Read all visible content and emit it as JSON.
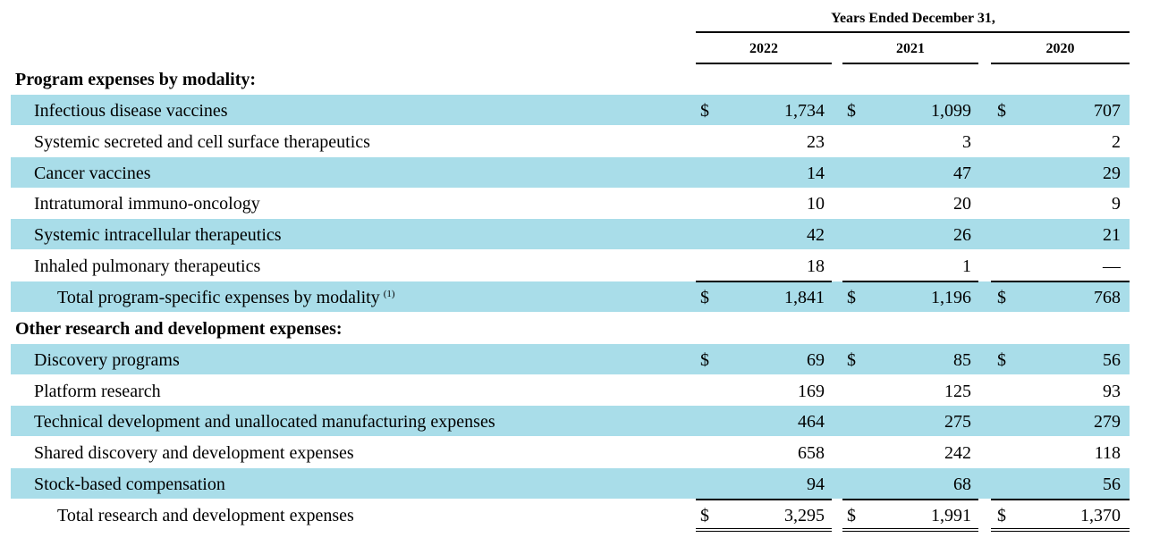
{
  "header": {
    "title": "Years Ended December 31,",
    "years": [
      "2022",
      "2021",
      "2020"
    ]
  },
  "sections": [
    {
      "title": "Program expenses by modality:",
      "rows": [
        {
          "label": "Infectious disease vaccines",
          "values": [
            "1,734",
            "1,099",
            "707"
          ],
          "dollar": true
        },
        {
          "label": "Systemic secreted and cell surface therapeutics",
          "values": [
            "23",
            "3",
            "2"
          ],
          "dollar": false
        },
        {
          "label": "Cancer vaccines",
          "values": [
            "14",
            "47",
            "29"
          ],
          "dollar": false
        },
        {
          "label": "Intratumoral immuno-oncology",
          "values": [
            "10",
            "20",
            "9"
          ],
          "dollar": false
        },
        {
          "label": "Systemic intracellular therapeutics",
          "values": [
            "42",
            "26",
            "21"
          ],
          "dollar": false
        },
        {
          "label": "Inhaled pulmonary therapeutics",
          "values": [
            "18",
            "1",
            "—"
          ],
          "dollar": false
        }
      ],
      "total": {
        "label": "Total program-specific expenses by modality",
        "footnote": "(1)",
        "values": [
          "1,841",
          "1,196",
          "768"
        ]
      }
    },
    {
      "title": "Other research and development expenses:",
      "rows": [
        {
          "label": "Discovery programs",
          "values": [
            "69",
            "85",
            "56"
          ],
          "dollar": true
        },
        {
          "label": "Platform research",
          "values": [
            "169",
            "125",
            "93"
          ],
          "dollar": false
        },
        {
          "label": "Technical development and unallocated manufacturing expenses",
          "values": [
            "464",
            "275",
            "279"
          ],
          "dollar": false
        },
        {
          "label": "Shared discovery and development expenses",
          "values": [
            "658",
            "242",
            "118"
          ],
          "dollar": false
        },
        {
          "label": "Stock-based compensation",
          "values": [
            "94",
            "68",
            "56"
          ],
          "dollar": false
        }
      ],
      "total": {
        "label": "Total research and development expenses",
        "footnote": "",
        "values": [
          "3,295",
          "1,991",
          "1,370"
        ]
      }
    }
  ],
  "currency_symbol": "$",
  "colors": {
    "shade": "#a9dde9"
  }
}
